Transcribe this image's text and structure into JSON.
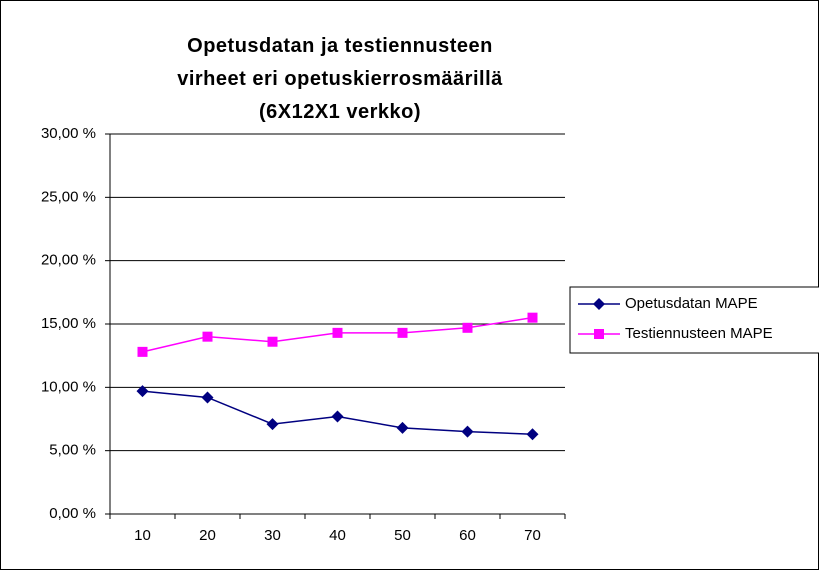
{
  "chart_data": {
    "type": "line",
    "title": "Opetusdatan ja testiennusteen virheet eri opetuskierrosmäärillä (6X12X1 verkko)",
    "categories": [
      "10",
      "20",
      "30",
      "40",
      "50",
      "60",
      "70"
    ],
    "series": [
      {
        "name": "Opetusdatan MAPE",
        "color": "#000080",
        "marker": "diamond",
        "values": [
          9.7,
          9.2,
          7.1,
          7.7,
          6.8,
          6.5,
          6.3
        ]
      },
      {
        "name": "Testiennusteen MAPE",
        "color": "#ff00ff",
        "marker": "square",
        "values": [
          12.8,
          14.0,
          13.6,
          14.3,
          14.3,
          14.7,
          15.5
        ]
      }
    ],
    "ylim": [
      0,
      30
    ],
    "yticks": [
      {
        "value": 0,
        "label": "0,00 %"
      },
      {
        "value": 5,
        "label": "5,00 %"
      },
      {
        "value": 10,
        "label": "10,00 %"
      },
      {
        "value": 15,
        "label": "15,00 %"
      },
      {
        "value": 20,
        "label": "20,00 %"
      },
      {
        "value": 25,
        "label": "25,00 %"
      },
      {
        "value": 30,
        "label": "30,00 %"
      }
    ],
    "grid": true,
    "legend": "right"
  }
}
